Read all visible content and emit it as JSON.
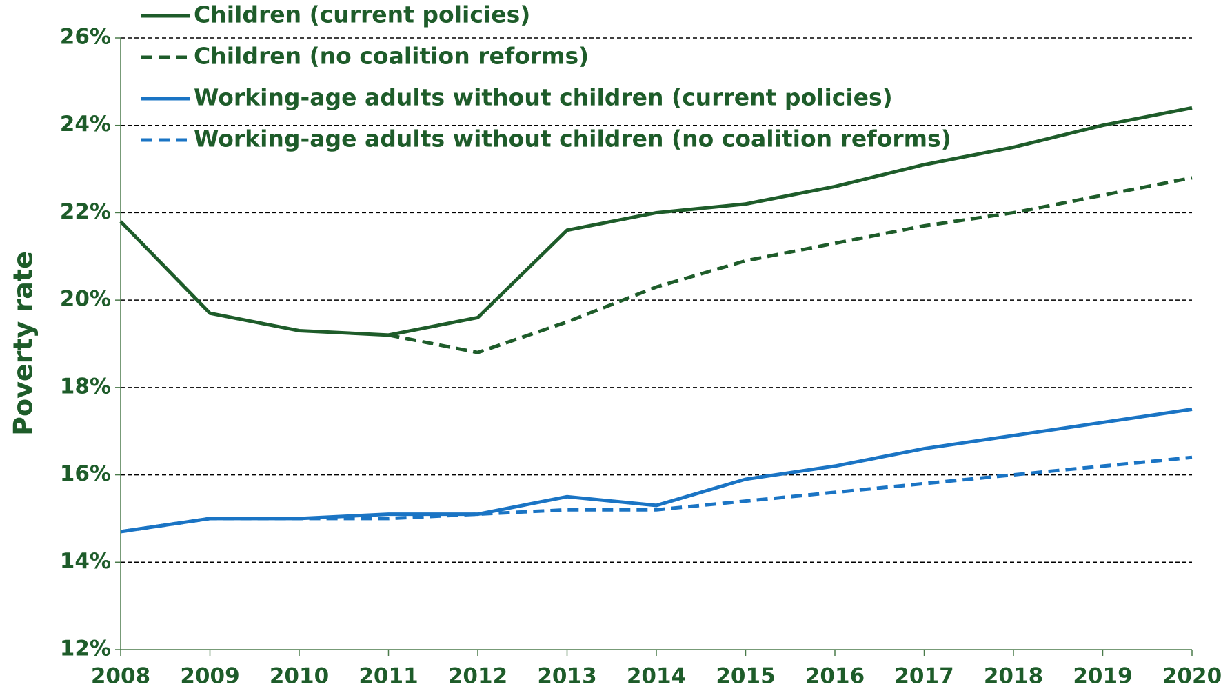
{
  "chart_data": {
    "type": "line",
    "y_label": "Poverty rate",
    "x": [
      2008,
      2009,
      2010,
      2011,
      2012,
      2013,
      2014,
      2015,
      2016,
      2017,
      2018,
      2019,
      2020
    ],
    "xlim": [
      2008,
      2020
    ],
    "xticks": [
      2008,
      2009,
      2010,
      2011,
      2012,
      2013,
      2014,
      2015,
      2016,
      2017,
      2018,
      2019,
      2020
    ],
    "ylim": [
      12,
      26
    ],
    "yticks": [
      {
        "value": 12,
        "label": "12%"
      },
      {
        "value": 14,
        "label": "14%"
      },
      {
        "value": 16,
        "label": "16%"
      },
      {
        "value": 18,
        "label": "18%"
      },
      {
        "value": 20,
        "label": "20%"
      },
      {
        "value": 22,
        "label": "22%"
      },
      {
        "value": 24,
        "label": "24%"
      },
      {
        "value": 26,
        "label": "26%"
      }
    ],
    "grid": true,
    "legend": "top-left",
    "series": [
      {
        "name": "Children (current policies)",
        "color": "#1e5c2a",
        "dashed": false,
        "values": [
          21.8,
          19.7,
          19.3,
          19.2,
          19.6,
          21.6,
          22.0,
          22.2,
          22.6,
          23.1,
          23.5,
          24.0,
          24.4
        ]
      },
      {
        "name": "Children (no coalition reforms)",
        "color": "#1e5c2a",
        "dashed": true,
        "values": [
          null,
          null,
          null,
          19.2,
          18.8,
          19.5,
          20.3,
          20.9,
          21.3,
          21.7,
          22.0,
          22.4,
          22.8
        ]
      },
      {
        "name": "Working-age adults without children (current policies)",
        "color": "#1a74c4",
        "dashed": false,
        "values": [
          14.7,
          15.0,
          15.0,
          15.1,
          15.1,
          15.5,
          15.3,
          15.9,
          16.2,
          16.6,
          16.9,
          17.2,
          17.5
        ]
      },
      {
        "name": "Working-age adults without children (no coalition reforms)",
        "color": "#1a74c4",
        "dashed": true,
        "values": [
          14.7,
          15.0,
          15.0,
          15.0,
          15.1,
          15.2,
          15.2,
          15.4,
          15.6,
          15.8,
          16.0,
          16.2,
          16.4
        ]
      }
    ]
  }
}
